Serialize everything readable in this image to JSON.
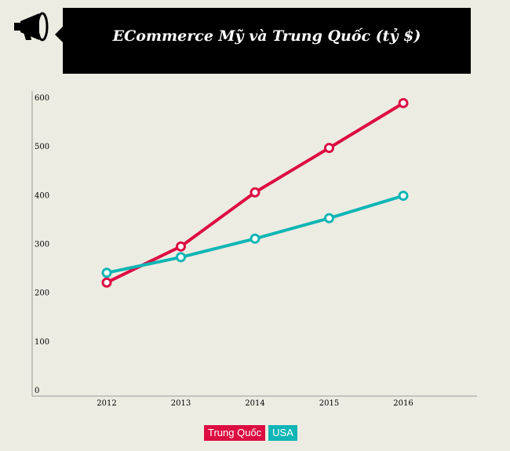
{
  "title": "ECommerce Mỹ và Trung Quốc (tỷ $)",
  "icon": "megaphone-icon",
  "chart_data": {
    "type": "line",
    "title": "ECommerce Mỹ và Trung Quốc (tỷ $)",
    "categories": [
      "2012",
      "2013",
      "2014",
      "2015",
      "2016"
    ],
    "yticks": [
      "0",
      "100",
      "200",
      "300",
      "400",
      "500",
      "600"
    ],
    "ylim": [
      0,
      600
    ],
    "grid": false,
    "legend_position": "bottom-center",
    "series": [
      {
        "name": "Trung Quốc",
        "color": "#dc0d42",
        "values": [
          220,
          294,
          405,
          496,
          588
        ]
      },
      {
        "name": "USA",
        "color": "#10b5b5",
        "values": [
          240,
          272,
          310,
          352,
          398
        ]
      }
    ]
  }
}
